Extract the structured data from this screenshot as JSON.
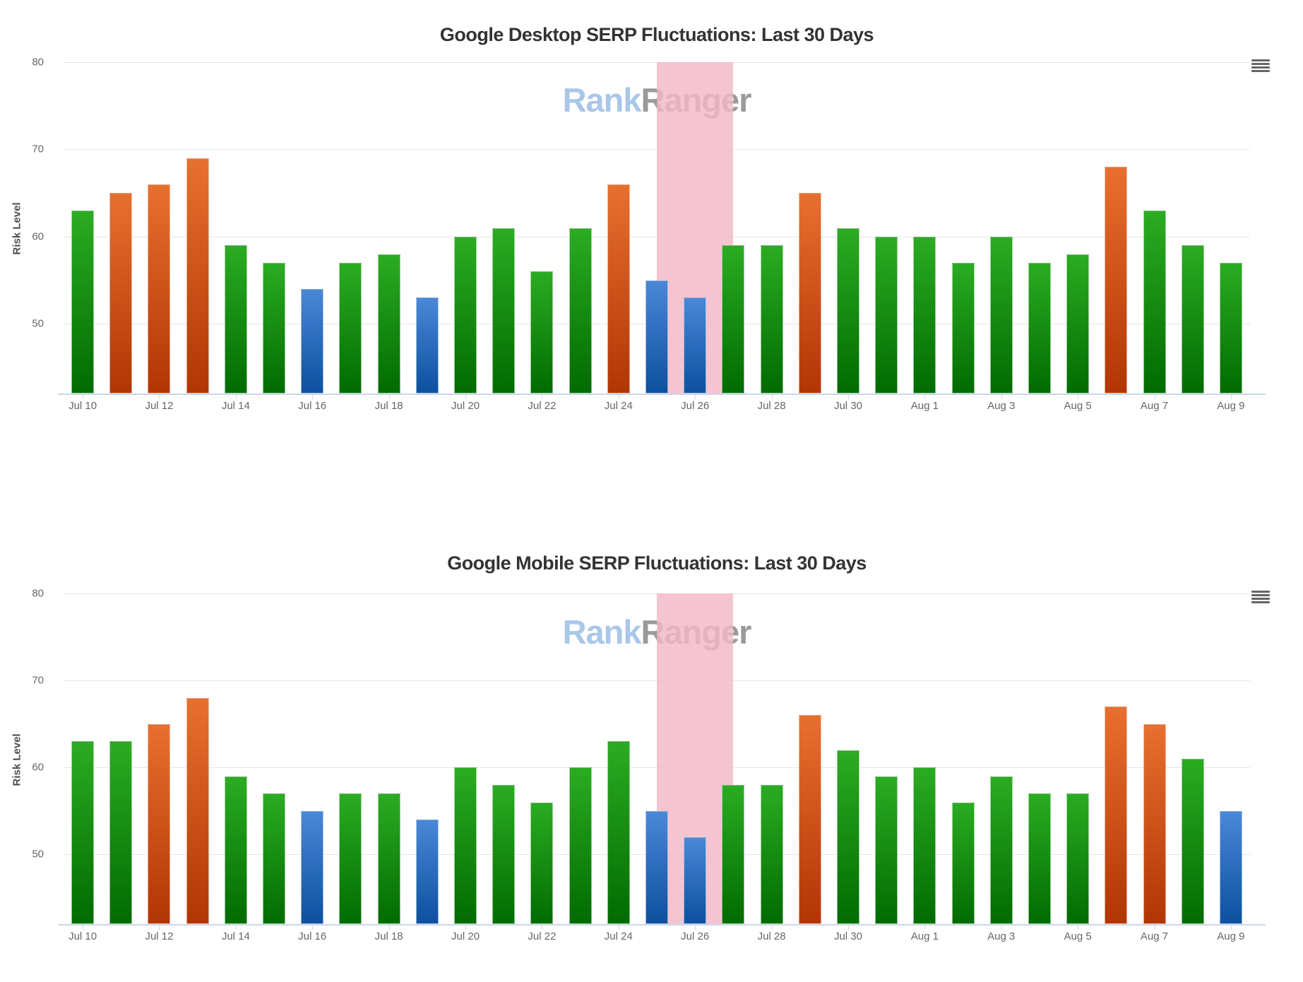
{
  "charts": [
    {
      "title": "Google Desktop SERP Fluctuations: Last 30 Days",
      "y_axis_title": "Risk Level",
      "watermark": {
        "brand_light": "Rank",
        "brand_dark": "Ranger"
      },
      "menu_icon": "hamburger-menu-icon"
    },
    {
      "title": "Google Mobile SERP Fluctuations: Last 30 Days",
      "y_axis_title": "Risk Level",
      "watermark": {
        "brand_light": "Rank",
        "brand_dark": "Ranger"
      },
      "menu_icon": "hamburger-menu-icon"
    }
  ],
  "chart_data": [
    {
      "type": "bar",
      "title": "Google Desktop SERP Fluctuations: Last 30 Days",
      "xlabel": "",
      "ylabel": "Risk Level",
      "ylim": [
        42,
        80
      ],
      "yticks": [
        80,
        70,
        60,
        50
      ],
      "x_labels_every": 2,
      "grid": true,
      "legend": false,
      "categories": [
        "Jul 10",
        "Jul 11",
        "Jul 12",
        "Jul 13",
        "Jul 14",
        "Jul 15",
        "Jul 16",
        "Jul 17",
        "Jul 18",
        "Jul 19",
        "Jul 20",
        "Jul 21",
        "Jul 22",
        "Jul 23",
        "Jul 24",
        "Jul 25",
        "Jul 26",
        "Jul 27",
        "Jul 28",
        "Jul 29",
        "Jul 30",
        "Jul 31",
        "Aug 1",
        "Aug 2",
        "Aug 3",
        "Aug 4",
        "Aug 5",
        "Aug 6",
        "Aug 7",
        "Aug 8",
        "Aug 9"
      ],
      "values": [
        63,
        65,
        66,
        69,
        59,
        57,
        54,
        57,
        58,
        53,
        60,
        61,
        56,
        61,
        66,
        55,
        53,
        59,
        59,
        65,
        61,
        60,
        60,
        57,
        60,
        57,
        58,
        68,
        63,
        59,
        57
      ],
      "point_colors": [
        "green",
        "orange",
        "orange",
        "orange",
        "green",
        "green",
        "blue",
        "green",
        "green",
        "blue",
        "green",
        "green",
        "green",
        "green",
        "orange",
        "blue",
        "blue",
        "green",
        "green",
        "orange",
        "green",
        "green",
        "green",
        "green",
        "green",
        "green",
        "green",
        "orange",
        "green",
        "green",
        "green"
      ],
      "plot_band": {
        "from": "Jul 25",
        "to": "Jul 27",
        "color": "#F2B7C6"
      }
    },
    {
      "type": "bar",
      "title": "Google Mobile SERP Fluctuations: Last 30 Days",
      "xlabel": "",
      "ylabel": "Risk Level",
      "ylim": [
        42,
        80
      ],
      "yticks": [
        80,
        70,
        60,
        50
      ],
      "x_labels_every": 2,
      "grid": true,
      "legend": false,
      "categories": [
        "Jul 10",
        "Jul 11",
        "Jul 12",
        "Jul 13",
        "Jul 14",
        "Jul 15",
        "Jul 16",
        "Jul 17",
        "Jul 18",
        "Jul 19",
        "Jul 20",
        "Jul 21",
        "Jul 22",
        "Jul 23",
        "Jul 24",
        "Jul 25",
        "Jul 26",
        "Jul 27",
        "Jul 28",
        "Jul 29",
        "Jul 30",
        "Jul 31",
        "Aug 1",
        "Aug 2",
        "Aug 3",
        "Aug 4",
        "Aug 5",
        "Aug 6",
        "Aug 7",
        "Aug 8",
        "Aug 9"
      ],
      "values": [
        63,
        63,
        65,
        68,
        59,
        57,
        55,
        57,
        57,
        54,
        60,
        58,
        56,
        60,
        63,
        55,
        52,
        58,
        58,
        66,
        62,
        59,
        60,
        56,
        59,
        57,
        57,
        67,
        65,
        61,
        55
      ],
      "point_colors": [
        "green",
        "green",
        "orange",
        "orange",
        "green",
        "green",
        "blue",
        "green",
        "green",
        "blue",
        "green",
        "green",
        "green",
        "green",
        "green",
        "blue",
        "blue",
        "green",
        "green",
        "orange",
        "green",
        "green",
        "green",
        "green",
        "green",
        "green",
        "green",
        "orange",
        "orange",
        "green",
        "blue"
      ],
      "plot_band": {
        "from": "Jul 25",
        "to": "Jul 27",
        "color": "#F2B7C6"
      }
    }
  ],
  "colors": {
    "bar_green_top": "#2BAC22",
    "bar_green_bottom": "#016B01",
    "bar_orange_top": "#E7702F",
    "bar_orange_bottom": "#B23504",
    "bar_blue_top": "#4A87D8",
    "bar_blue_bottom": "#0D509F",
    "plot_band": "#F2B7C6",
    "gridline": "#E6E6E6",
    "axis_line": "#CCD6EB",
    "title_text": "#333333",
    "axis_label_text": "#666666",
    "watermark_blue": "#A9C7E9",
    "watermark_gray": "#9A9A9A",
    "menu_icon": "#666666"
  }
}
